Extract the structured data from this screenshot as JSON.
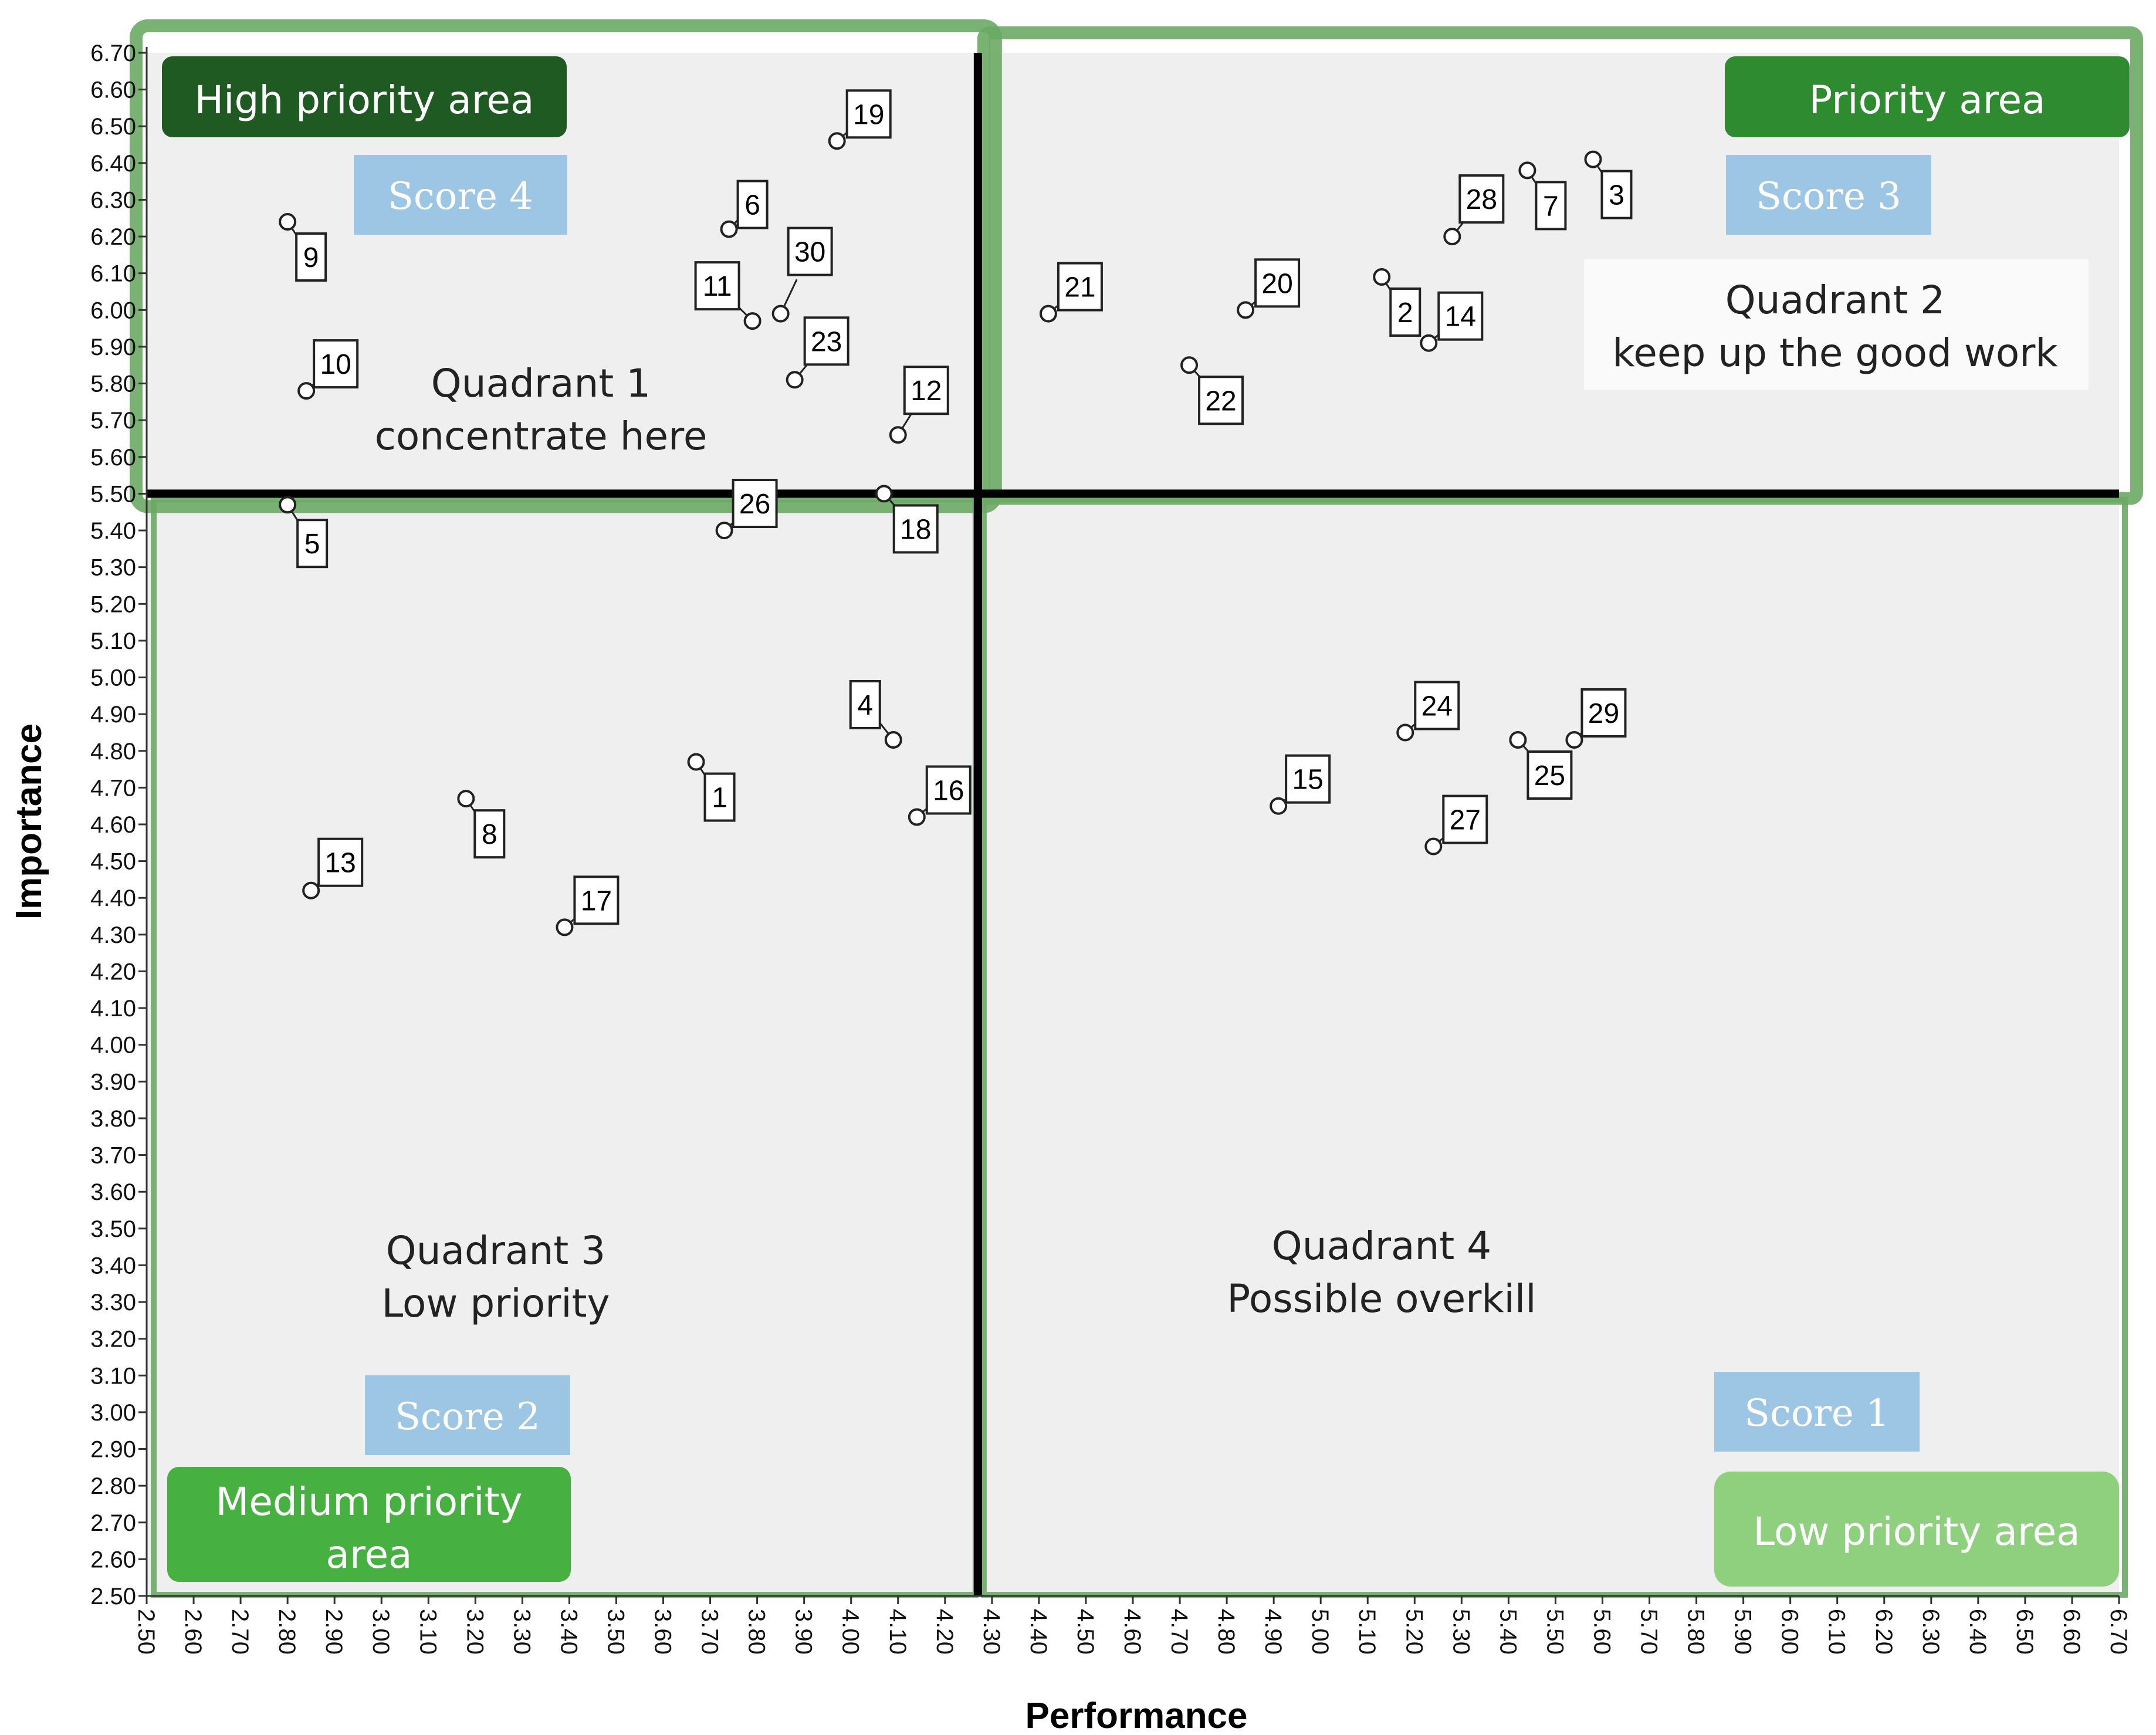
{
  "chart_data": {
    "type": "scatter",
    "xlabel": "Performance",
    "ylabel": "Importance",
    "xlim": [
      2.5,
      6.7
    ],
    "ylim": [
      2.5,
      6.7
    ],
    "x_ticks": [
      "2.50",
      "2.60",
      "2.70",
      "2.80",
      "2.90",
      "3.00",
      "3.10",
      "3.20",
      "3.30",
      "3.40",
      "3.50",
      "3.60",
      "3.70",
      "3.80",
      "3.90",
      "4.00",
      "4.10",
      "4.20",
      "4.30",
      "4.40",
      "4.50",
      "4.60",
      "4.70",
      "4.80",
      "4.90",
      "5.00",
      "5.10",
      "5.20",
      "5.30",
      "5.40",
      "5.50",
      "5.60",
      "5.70",
      "5.80",
      "5.90",
      "6.00",
      "6.10",
      "6.20",
      "6.30",
      "6.40",
      "6.50",
      "6.60",
      "6.70"
    ],
    "y_ticks": [
      "2.50",
      "2.60",
      "2.70",
      "2.80",
      "2.90",
      "3.00",
      "3.10",
      "3.20",
      "3.30",
      "3.40",
      "3.50",
      "3.60",
      "3.70",
      "3.80",
      "3.90",
      "4.00",
      "4.10",
      "4.20",
      "4.30",
      "4.40",
      "4.50",
      "4.60",
      "4.70",
      "4.80",
      "4.90",
      "5.00",
      "5.10",
      "5.20",
      "5.30",
      "5.40",
      "5.50",
      "5.60",
      "5.70",
      "5.80",
      "5.90",
      "6.00",
      "6.10",
      "6.20",
      "6.30",
      "6.40",
      "6.50",
      "6.60",
      "6.70"
    ],
    "x_divider": 4.27,
    "y_divider": 5.5,
    "grid": false,
    "points": [
      {
        "label": "1",
        "x": 3.67,
        "y": 4.77
      },
      {
        "label": "2",
        "x": 5.13,
        "y": 6.09
      },
      {
        "label": "3",
        "x": 5.58,
        "y": 6.41
      },
      {
        "label": "4",
        "x": 4.09,
        "y": 4.83
      },
      {
        "label": "5",
        "x": 2.8,
        "y": 5.47
      },
      {
        "label": "6",
        "x": 3.74,
        "y": 6.22
      },
      {
        "label": "7",
        "x": 5.44,
        "y": 6.38
      },
      {
        "label": "8",
        "x": 3.18,
        "y": 4.67
      },
      {
        "label": "9",
        "x": 2.8,
        "y": 6.24
      },
      {
        "label": "10",
        "x": 2.84,
        "y": 5.78
      },
      {
        "label": "11",
        "x": 3.79,
        "y": 5.97
      },
      {
        "label": "12",
        "x": 4.1,
        "y": 5.66
      },
      {
        "label": "13",
        "x": 2.85,
        "y": 4.42
      },
      {
        "label": "14",
        "x": 5.23,
        "y": 5.91
      },
      {
        "label": "15",
        "x": 4.91,
        "y": 4.65
      },
      {
        "label": "16",
        "x": 4.14,
        "y": 4.62
      },
      {
        "label": "17",
        "x": 3.39,
        "y": 4.32
      },
      {
        "label": "18",
        "x": 4.07,
        "y": 5.5
      },
      {
        "label": "19",
        "x": 3.97,
        "y": 6.46
      },
      {
        "label": "20",
        "x": 4.84,
        "y": 6.0
      },
      {
        "label": "21",
        "x": 4.42,
        "y": 5.99
      },
      {
        "label": "22",
        "x": 4.72,
        "y": 5.85
      },
      {
        "label": "23",
        "x": 3.88,
        "y": 5.81
      },
      {
        "label": "24",
        "x": 5.18,
        "y": 4.85
      },
      {
        "label": "25",
        "x": 5.42,
        "y": 4.83
      },
      {
        "label": "26",
        "x": 3.73,
        "y": 5.4
      },
      {
        "label": "27",
        "x": 5.24,
        "y": 4.54
      },
      {
        "label": "28",
        "x": 5.28,
        "y": 6.2
      },
      {
        "label": "29",
        "x": 5.54,
        "y": 4.83
      },
      {
        "label": "30",
        "x": 3.85,
        "y": 5.99
      }
    ],
    "annotations": {
      "q1_line1": "Quadrant 1",
      "q1_line2": "concentrate here",
      "q2_line1": "Quadrant 2",
      "q2_line2": "keep up the good work",
      "q3_line1": "Quadrant 3",
      "q3_line2": "Low priority",
      "q4_line1": "Quadrant 4",
      "q4_line2": "Possible overkill",
      "high_priority": "High priority area",
      "priority": "Priority area",
      "medium_priority_line1": "Medium priority",
      "medium_priority_line2": "area",
      "low_priority": "Low priority area",
      "score4": "Score 4",
      "score3": "Score 3",
      "score2": "Score 2",
      "score1": "Score 1"
    }
  },
  "colors": {
    "plot_bg": "#efefef",
    "green_border": "#6aaa64",
    "high_priority": "#1f5a23",
    "priority": "#2e8b30",
    "medium_priority": "#46b040",
    "low_priority": "#8fd07f",
    "score_box": "#9dc6e4",
    "divider": "#000000"
  }
}
